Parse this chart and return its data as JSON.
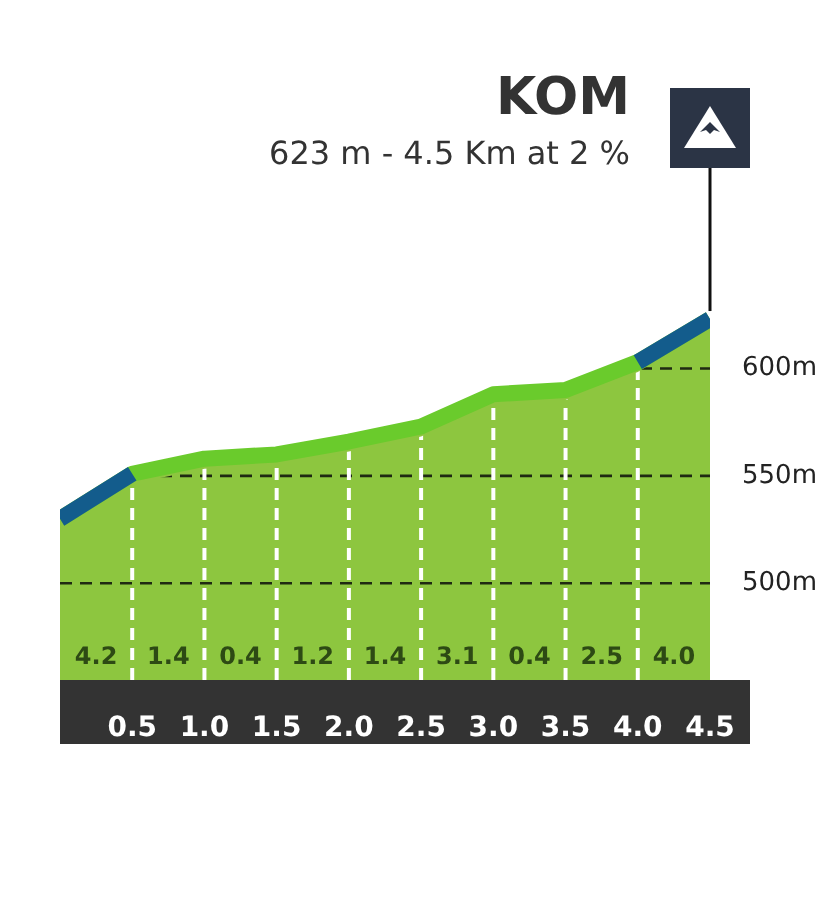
{
  "chart_data": {
    "type": "area",
    "title": "KOM",
    "subtitle": "623 m - 4.5 Km at 2 %",
    "x": [
      0,
      0.5,
      1,
      1.5,
      2,
      2.5,
      3,
      3.5,
      4,
      4.5
    ],
    "series": [
      {
        "color": "#8dc63f",
        "values": [
          530,
          551,
          558,
          560,
          566,
          573,
          588,
          590,
          603,
          623
        ]
      },
      {
        "type": "line",
        "color": "#135c8c",
        "values": [
          530,
          551,
          null,
          null,
          null,
          null,
          null,
          null,
          603,
          623
        ]
      }
    ],
    "xlim": [
      0,
      4.5
    ],
    "xticks": [
      {
        "value": 0.5,
        "label": "0.5"
      },
      {
        "value": 1,
        "label": "1.0"
      },
      {
        "value": 1.5,
        "label": "1.5"
      },
      {
        "value": 2,
        "label": "2.0"
      },
      {
        "value": 2.5,
        "label": "2.5"
      },
      {
        "value": 3,
        "label": "3.0"
      },
      {
        "value": 3.5,
        "label": "3.5"
      },
      {
        "value": 4,
        "label": "4.0"
      },
      {
        "value": 4.5,
        "label": "4.5"
      }
    ],
    "ylim": [
      455,
      630
    ],
    "yticks": [
      {
        "value": 500,
        "label": "500m"
      },
      {
        "value": 550,
        "label": "550m"
      },
      {
        "value": 600,
        "label": "600m"
      }
    ],
    "grid": true,
    "annotations": [
      "4.2",
      "1.4",
      "0.4",
      "1.2",
      "1.4",
      "3.1",
      "0.4",
      "2.5",
      "4.0"
    ]
  }
}
